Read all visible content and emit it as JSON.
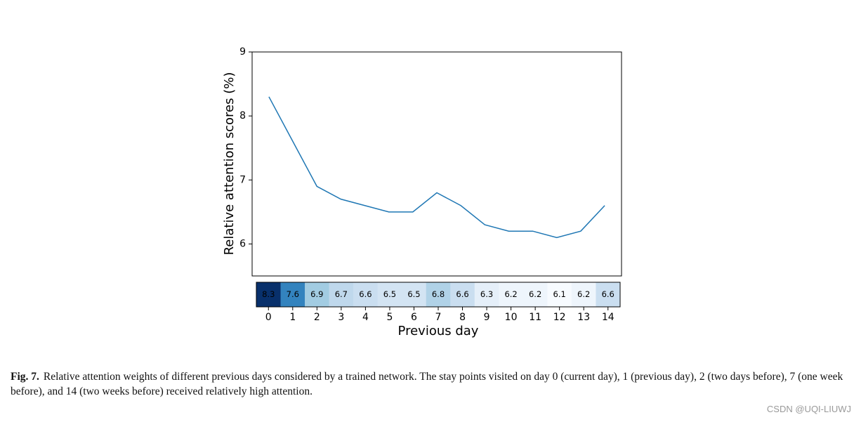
{
  "chart_data": [
    {
      "type": "line",
      "y_label": "Relative attention scores (%)",
      "x": [
        0,
        1,
        2,
        3,
        4,
        5,
        6,
        7,
        8,
        9,
        10,
        11,
        12,
        13,
        14
      ],
      "values": [
        8.3,
        7.6,
        6.9,
        6.7,
        6.6,
        6.5,
        6.5,
        6.8,
        6.6,
        6.3,
        6.2,
        6.2,
        6.1,
        6.2,
        6.6
      ],
      "color": "#1f77b4",
      "xlim": [
        -0.7,
        14.7
      ],
      "ylim": [
        5.5,
        9
      ],
      "yticks": [
        6,
        7,
        8,
        9
      ],
      "grid": false
    },
    {
      "type": "heatmap",
      "x_label": "Previous day",
      "categories": [
        "0",
        "1",
        "2",
        "3",
        "4",
        "5",
        "6",
        "7",
        "8",
        "9",
        "10",
        "11",
        "12",
        "13",
        "14"
      ],
      "values": [
        8.3,
        7.6,
        6.9,
        6.7,
        6.6,
        6.5,
        6.5,
        6.8,
        6.6,
        6.3,
        6.2,
        6.2,
        6.1,
        6.2,
        6.6
      ],
      "colormap": [
        "#f7fbff",
        "#deebf7",
        "#c6dbef",
        "#9ecae1",
        "#6baed6",
        "#4292c6",
        "#2171b5",
        "#08519c",
        "#08306b"
      ]
    }
  ],
  "caption": {
    "label": "Fig. 7.",
    "text": "Relative attention weights of different previous days considered by a trained network. The stay points visited on day 0 (current day), 1 (previous day), 2 (two days before), 7 (one week before), and 14 (two weeks before) received relatively high attention."
  },
  "watermark": "CSDN @UQI-LIUWJ"
}
